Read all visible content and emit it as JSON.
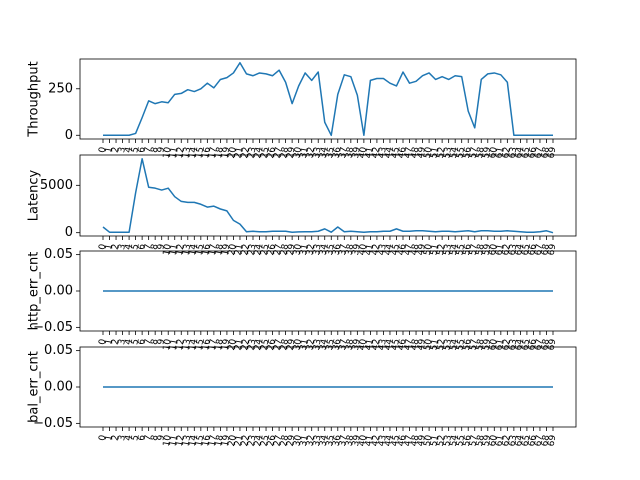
{
  "chart_data": [
    {
      "type": "line",
      "ylabel": "Throughput",
      "ylim": [
        -20,
        410
      ],
      "yticks": [
        0,
        250
      ],
      "ytick_labels": [
        "0",
        "250"
      ],
      "grid": false,
      "color": "#1f77b4",
      "values": [
        0,
        0,
        0,
        0,
        0,
        10,
        95,
        185,
        170,
        180,
        175,
        220,
        225,
        245,
        235,
        250,
        280,
        255,
        300,
        310,
        335,
        390,
        330,
        320,
        335,
        330,
        320,
        350,
        285,
        170,
        265,
        335,
        295,
        340,
        70,
        0,
        220,
        325,
        315,
        215,
        0,
        295,
        305,
        305,
        280,
        265,
        340,
        280,
        290,
        320,
        335,
        300,
        315,
        300,
        320,
        315,
        130,
        40,
        300,
        330,
        335,
        325,
        285,
        0,
        0,
        0,
        0,
        0,
        0,
        0
      ]
    },
    {
      "type": "line",
      "ylabel": "Latency",
      "ylim": [
        -350,
        8200
      ],
      "yticks": [
        0,
        5000
      ],
      "ytick_labels": [
        "0",
        "5000"
      ],
      "grid": false,
      "color": "#1f77b4",
      "values": [
        600,
        50,
        50,
        50,
        50,
        4200,
        7800,
        4800,
        4700,
        4500,
        4700,
        3800,
        3300,
        3200,
        3200,
        3000,
        2700,
        2800,
        2500,
        2300,
        1300,
        900,
        100,
        150,
        100,
        100,
        150,
        150,
        150,
        50,
        80,
        100,
        100,
        150,
        400,
        50,
        600,
        100,
        150,
        100,
        50,
        100,
        100,
        150,
        150,
        400,
        150,
        150,
        200,
        200,
        150,
        100,
        150,
        150,
        100,
        150,
        200,
        100,
        200,
        200,
        150,
        150,
        200,
        150,
        100,
        50,
        50,
        100,
        200,
        0
      ]
    },
    {
      "type": "line",
      "ylabel": "http_err_cnt",
      "ylim": [
        -0.055,
        0.055
      ],
      "yticks": [
        -0.05,
        0.0,
        0.05
      ],
      "ytick_labels": [
        "−0.05",
        "0.00",
        "0.05"
      ],
      "grid": false,
      "color": "#1f77b4",
      "values": [
        0,
        0,
        0,
        0,
        0,
        0,
        0,
        0,
        0,
        0,
        0,
        0,
        0,
        0,
        0,
        0,
        0,
        0,
        0,
        0,
        0,
        0,
        0,
        0,
        0,
        0,
        0,
        0,
        0,
        0,
        0,
        0,
        0,
        0,
        0,
        0,
        0,
        0,
        0,
        0,
        0,
        0,
        0,
        0,
        0,
        0,
        0,
        0,
        0,
        0,
        0,
        0,
        0,
        0,
        0,
        0,
        0,
        0,
        0,
        0,
        0,
        0,
        0,
        0,
        0,
        0,
        0,
        0,
        0,
        0
      ]
    },
    {
      "type": "line",
      "ylabel": "bal_err_cnt",
      "ylim": [
        -0.055,
        0.055
      ],
      "yticks": [
        -0.05,
        0.0,
        0.05
      ],
      "ytick_labels": [
        "−0.05",
        "0.00",
        "0.05"
      ],
      "grid": false,
      "color": "#1f77b4",
      "values": [
        0,
        0,
        0,
        0,
        0,
        0,
        0,
        0,
        0,
        0,
        0,
        0,
        0,
        0,
        0,
        0,
        0,
        0,
        0,
        0,
        0,
        0,
        0,
        0,
        0,
        0,
        0,
        0,
        0,
        0,
        0,
        0,
        0,
        0,
        0,
        0,
        0,
        0,
        0,
        0,
        0,
        0,
        0,
        0,
        0,
        0,
        0,
        0,
        0,
        0,
        0,
        0,
        0,
        0,
        0,
        0,
        0,
        0,
        0,
        0,
        0,
        0,
        0,
        0,
        0,
        0,
        0,
        0,
        0,
        0
      ]
    }
  ]
}
